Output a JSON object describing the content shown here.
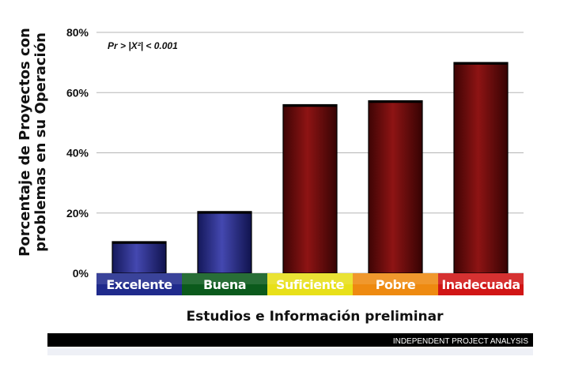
{
  "chart_data": {
    "type": "bar",
    "categories": [
      "Excelente",
      "Buena",
      "Suficiente",
      "Pobre",
      "Inadecuada"
    ],
    "values": [
      10.5,
      20.5,
      56,
      57.3,
      70
    ],
    "category_colors": [
      "#1f2a8c",
      "#0b5a1c",
      "#e8e019",
      "#ee8a10",
      "#d11515"
    ],
    "bar_colors": [
      "#2a2f8a",
      "#2a2f8a",
      "#6e0b0b",
      "#6e0b0b",
      "#6e0b0b"
    ],
    "yticks": [
      "0%",
      "20%",
      "40%",
      "60%",
      "80%"
    ],
    "ylim": [
      0,
      80
    ],
    "ylabel_line1": "Porcentaje de Proyectos con",
    "ylabel_line2": "problemas en su Operación",
    "xlabel": "Estudios e Información preliminar",
    "annotation": "Pr > |X²| < 0.001",
    "grid": true
  },
  "footer": {
    "text": "INDEPENDENT PROJECT ANALYSIS"
  }
}
